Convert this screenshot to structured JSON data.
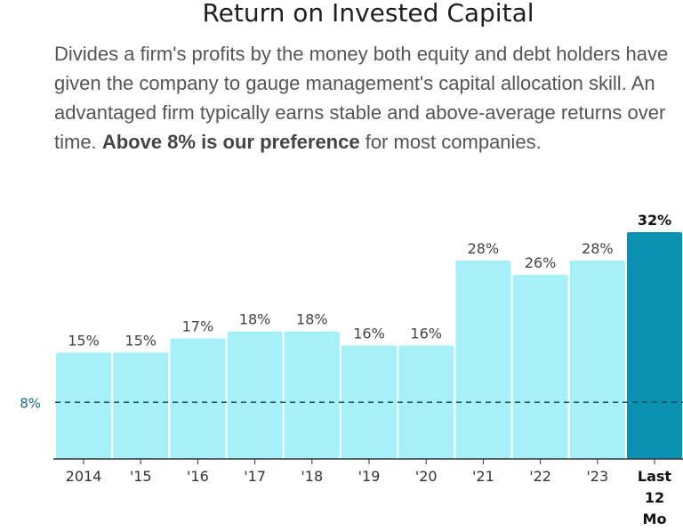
{
  "header": {
    "title": "Return on Invested Capital",
    "description_plain": "Divides a firm's profits by the money both equity and debt holders have given the company to gauge management's capital allocation skill. An advantaged firm typically earns stable and above-average returns over time.",
    "description_bold": "Above 8% is our preference",
    "description_tail": " for most companies."
  },
  "colors": {
    "bar": "#a6f0fa",
    "bar_highlight": "#0a91b1",
    "reference_line": "#1f4e5f",
    "axis": "#333333"
  },
  "chart_data": {
    "type": "bar",
    "categories": [
      "2014",
      "'15",
      "'16",
      "'17",
      "'18",
      "'19",
      "'20",
      "'21",
      "'22",
      "'23",
      "Last 12 Mo"
    ],
    "values": [
      15,
      15,
      17,
      18,
      18,
      16,
      16,
      28,
      26,
      28,
      32
    ],
    "value_labels": [
      "15%",
      "15%",
      "17%",
      "18%",
      "18%",
      "16%",
      "16%",
      "28%",
      "26%",
      "28%",
      "32%"
    ],
    "highlight_index": 10,
    "reference_line": {
      "value": 8,
      "label": "8%"
    },
    "ylim": [
      0,
      32
    ],
    "grid": false,
    "legend": "none"
  }
}
